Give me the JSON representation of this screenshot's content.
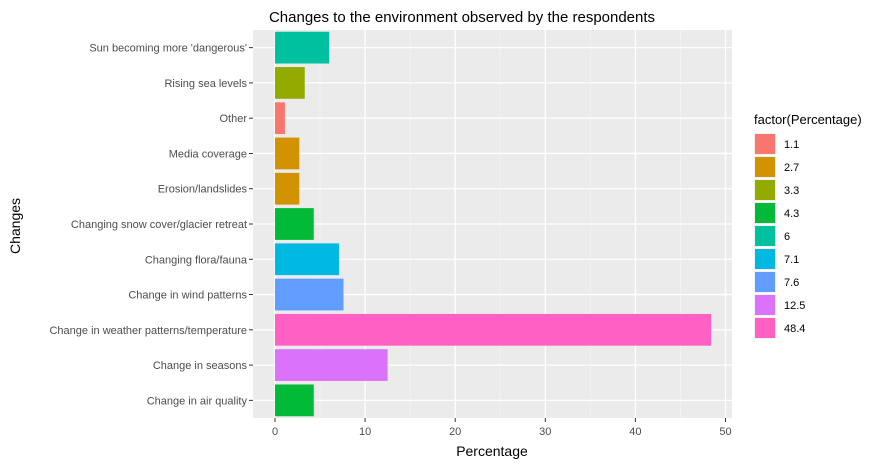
{
  "chart_data": {
    "type": "bar",
    "orientation": "horizontal",
    "title": "Changes to the environment observed by the respondents",
    "xlabel": "Percentage",
    "ylabel": "Changes",
    "xlim": [
      0,
      50
    ],
    "xticks": [
      0,
      10,
      20,
      30,
      40,
      50
    ],
    "grid": true,
    "legend": {
      "title": "factor(Percentage)",
      "position": "right",
      "entries": [
        {
          "label": "1.1",
          "color": "#F8766D"
        },
        {
          "label": "2.7",
          "color": "#D39200"
        },
        {
          "label": "3.3",
          "color": "#93AA00"
        },
        {
          "label": "4.3",
          "color": "#00BA38"
        },
        {
          "label": "6",
          "color": "#00C19F"
        },
        {
          "label": "7.1",
          "color": "#00B9E3"
        },
        {
          "label": "7.6",
          "color": "#619CFF"
        },
        {
          "label": "12.5",
          "color": "#DB72FB"
        },
        {
          "label": "48.4",
          "color": "#FF61C3"
        }
      ]
    },
    "categories": [
      "Change in air quality",
      "Change in seasons",
      "Change in weather patterns/temperature",
      "Change in wind patterns",
      "Changing flora/fauna",
      "Changing snow cover/glacier retreat",
      "Erosion/landslides",
      "Media coverage",
      "Other",
      "Rising sea levels",
      "Sun becoming more 'dangerous'"
    ],
    "values": [
      4.3,
      12.5,
      48.4,
      7.6,
      7.1,
      4.3,
      2.7,
      2.7,
      1.1,
      3.3,
      6
    ],
    "colors": [
      "#00BA38",
      "#DB72FB",
      "#FF61C3",
      "#619CFF",
      "#00B9E3",
      "#00BA38",
      "#D39200",
      "#D39200",
      "#F8766D",
      "#93AA00",
      "#00C19F"
    ]
  }
}
